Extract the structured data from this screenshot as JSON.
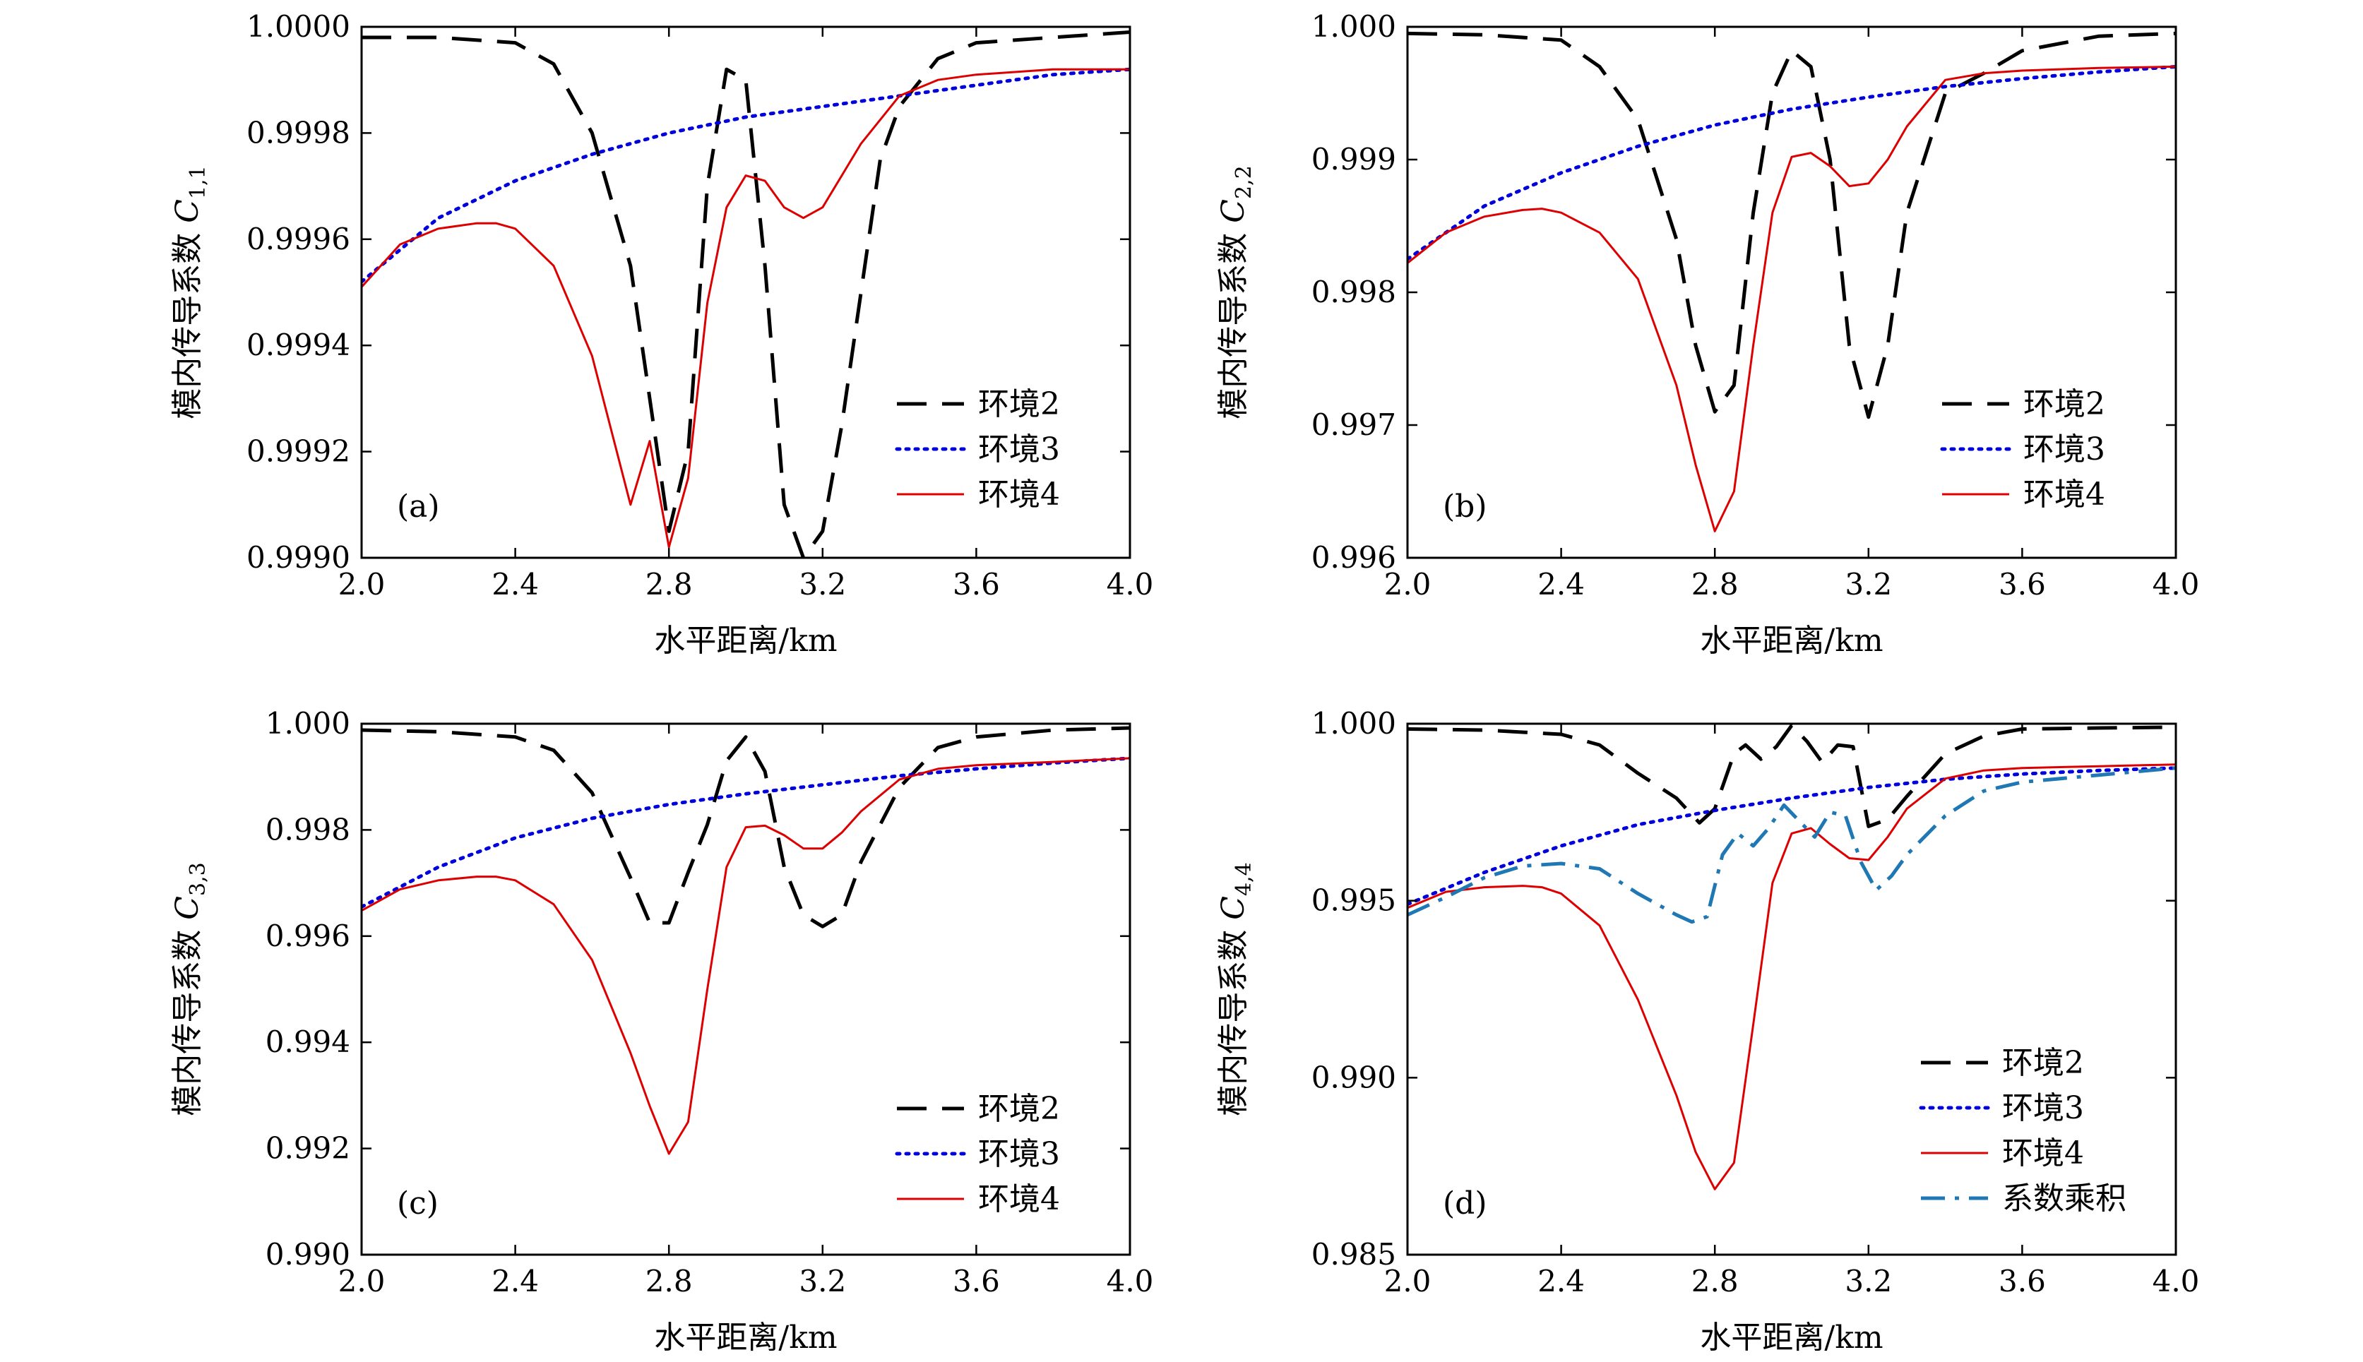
{
  "chart_data": [
    {
      "type": "line",
      "panel_label": "(a)",
      "xlabel": "水平距离/km",
      "ylabel_text": "模内传导系数 ",
      "ylabel_symbol": "C",
      "ylabel_sub": "1,1",
      "xlim": [
        2.0,
        4.0
      ],
      "ylim": [
        0.999,
        1.0
      ],
      "xticks": [
        2.0,
        2.4,
        2.8,
        3.2,
        3.6,
        4.0
      ],
      "xtick_labels": [
        "2.0",
        "2.4",
        "2.8",
        "3.2",
        "3.6",
        "4.0"
      ],
      "yticks": [
        0.999,
        0.9992,
        0.9994,
        0.9996,
        0.9998,
        1.0
      ],
      "ytick_labels": [
        "0.9990",
        "0.9992",
        "0.9994",
        "0.9996",
        "0.9998",
        "1.0000"
      ],
      "legend": [
        "环境2",
        "环境3",
        "环境4"
      ],
      "series": [
        {
          "name": "环境2",
          "style": "dashed",
          "color": "#000000",
          "x": [
            2.0,
            2.2,
            2.4,
            2.5,
            2.6,
            2.7,
            2.8,
            2.85,
            2.9,
            2.95,
            3.0,
            3.05,
            3.1,
            3.15,
            3.2,
            3.25,
            3.3,
            3.35,
            3.4,
            3.5,
            3.6,
            3.8,
            4.0
          ],
          "y": [
            0.99998,
            0.99998,
            0.99997,
            0.99993,
            0.9998,
            0.99955,
            0.99905,
            0.9992,
            0.9997,
            0.99992,
            0.9999,
            0.99955,
            0.9991,
            0.999,
            0.99905,
            0.99925,
            0.9995,
            0.99975,
            0.99985,
            0.99994,
            0.99997,
            0.99998,
            0.99999
          ]
        },
        {
          "name": "环境3",
          "style": "dotted",
          "color": "#0000dd",
          "x": [
            2.0,
            2.2,
            2.4,
            2.6,
            2.8,
            3.0,
            3.2,
            3.4,
            3.6,
            3.8,
            4.0
          ],
          "y": [
            0.99952,
            0.99964,
            0.99971,
            0.99976,
            0.9998,
            0.99983,
            0.99985,
            0.99987,
            0.99989,
            0.99991,
            0.99992
          ]
        },
        {
          "name": "环境4",
          "style": "solid",
          "color": "#dd0000",
          "x": [
            2.0,
            2.1,
            2.2,
            2.3,
            2.35,
            2.4,
            2.5,
            2.6,
            2.7,
            2.75,
            2.8,
            2.85,
            2.9,
            2.95,
            3.0,
            3.05,
            3.1,
            3.15,
            3.2,
            3.25,
            3.3,
            3.4,
            3.5,
            3.6,
            3.8,
            4.0
          ],
          "y": [
            0.99951,
            0.99959,
            0.99962,
            0.99963,
            0.99963,
            0.99962,
            0.99955,
            0.99938,
            0.9991,
            0.99922,
            0.99902,
            0.99915,
            0.99948,
            0.99966,
            0.99972,
            0.99971,
            0.99966,
            0.99964,
            0.99966,
            0.99972,
            0.99978,
            0.99987,
            0.9999,
            0.99991,
            0.99992,
            0.99992
          ]
        }
      ]
    },
    {
      "type": "line",
      "panel_label": "(b)",
      "xlabel": "水平距离/km",
      "ylabel_text": "模内传导系数 ",
      "ylabel_symbol": "C",
      "ylabel_sub": "2,2",
      "xlim": [
        2.0,
        4.0
      ],
      "ylim": [
        0.996,
        1.0
      ],
      "xticks": [
        2.0,
        2.4,
        2.8,
        3.2,
        3.6,
        4.0
      ],
      "xtick_labels": [
        "2.0",
        "2.4",
        "2.8",
        "3.2",
        "3.6",
        "4.0"
      ],
      "yticks": [
        0.996,
        0.997,
        0.998,
        0.999,
        1.0
      ],
      "ytick_labels": [
        "0.996",
        "0.997",
        "0.998",
        "0.999",
        "1.000"
      ],
      "legend": [
        "环境2",
        "环境3",
        "环境4"
      ],
      "series": [
        {
          "name": "环境2",
          "style": "dashed",
          "color": "#000000",
          "x": [
            2.0,
            2.2,
            2.4,
            2.5,
            2.6,
            2.7,
            2.75,
            2.8,
            2.85,
            2.9,
            2.95,
            3.0,
            3.05,
            3.1,
            3.15,
            3.2,
            3.25,
            3.3,
            3.4,
            3.5,
            3.6,
            3.8,
            4.0
          ],
          "y": [
            0.99995,
            0.99994,
            0.9999,
            0.9997,
            0.9993,
            0.9984,
            0.9976,
            0.9971,
            0.9973,
            0.9986,
            0.9995,
            0.99982,
            0.9997,
            0.999,
            0.9976,
            0.99706,
            0.9976,
            0.9986,
            0.9995,
            0.99965,
            0.99982,
            0.99993,
            0.99995
          ]
        },
        {
          "name": "环境3",
          "style": "dotted",
          "color": "#0000dd",
          "x": [
            2.0,
            2.2,
            2.4,
            2.6,
            2.8,
            3.0,
            3.2,
            3.4,
            3.6,
            3.8,
            4.0
          ],
          "y": [
            0.99825,
            0.99865,
            0.9989,
            0.9991,
            0.99926,
            0.99938,
            0.99947,
            0.99955,
            0.99961,
            0.99966,
            0.9997
          ]
        },
        {
          "name": "环境4",
          "style": "solid",
          "color": "#dd0000",
          "x": [
            2.0,
            2.1,
            2.2,
            2.3,
            2.35,
            2.4,
            2.5,
            2.6,
            2.7,
            2.75,
            2.8,
            2.85,
            2.9,
            2.95,
            3.0,
            3.05,
            3.1,
            3.15,
            3.2,
            3.25,
            3.3,
            3.4,
            3.5,
            3.6,
            3.8,
            4.0
          ],
          "y": [
            0.99822,
            0.99845,
            0.99857,
            0.99862,
            0.99863,
            0.9986,
            0.99845,
            0.9981,
            0.9973,
            0.9967,
            0.9962,
            0.9965,
            0.9976,
            0.9986,
            0.99902,
            0.99905,
            0.99895,
            0.9988,
            0.99882,
            0.999,
            0.99925,
            0.9996,
            0.99965,
            0.99967,
            0.99969,
            0.9997
          ]
        }
      ]
    },
    {
      "type": "line",
      "panel_label": "(c)",
      "xlabel": "水平距离/km",
      "ylabel_text": "模内传导系数 ",
      "ylabel_symbol": "C",
      "ylabel_sub": "3,3",
      "xlim": [
        2.0,
        4.0
      ],
      "ylim": [
        0.99,
        1.0
      ],
      "xticks": [
        2.0,
        2.4,
        2.8,
        3.2,
        3.6,
        4.0
      ],
      "xtick_labels": [
        "2.0",
        "2.4",
        "2.8",
        "3.2",
        "3.6",
        "4.0"
      ],
      "yticks": [
        0.99,
        0.992,
        0.994,
        0.996,
        0.998,
        1.0
      ],
      "ytick_labels": [
        "0.990",
        "0.992",
        "0.994",
        "0.996",
        "0.998",
        "1.000"
      ],
      "legend": [
        "环境2",
        "环境3",
        "环境4"
      ],
      "series": [
        {
          "name": "环境2",
          "style": "dashed",
          "color": "#000000",
          "x": [
            2.0,
            2.2,
            2.4,
            2.5,
            2.6,
            2.7,
            2.75,
            2.8,
            2.85,
            2.9,
            2.95,
            3.0,
            3.05,
            3.1,
            3.15,
            3.2,
            3.25,
            3.3,
            3.4,
            3.5,
            3.6,
            3.8,
            4.0
          ],
          "y": [
            0.99988,
            0.99985,
            0.99975,
            0.9995,
            0.9987,
            0.9971,
            0.99625,
            0.99625,
            0.9972,
            0.9981,
            0.9993,
            0.99975,
            0.9991,
            0.9973,
            0.9964,
            0.99618,
            0.9964,
            0.9974,
            0.9988,
            0.99955,
            0.99975,
            0.99988,
            0.99992
          ]
        },
        {
          "name": "环境3",
          "style": "dotted",
          "color": "#0000dd",
          "x": [
            2.0,
            2.2,
            2.4,
            2.6,
            2.8,
            3.0,
            3.2,
            3.4,
            3.6,
            3.8,
            4.0
          ],
          "y": [
            0.99655,
            0.9973,
            0.99785,
            0.99822,
            0.99848,
            0.99868,
            0.99885,
            0.99902,
            0.99915,
            0.99926,
            0.99935
          ]
        },
        {
          "name": "环境4",
          "style": "solid",
          "color": "#dd0000",
          "x": [
            2.0,
            2.1,
            2.2,
            2.3,
            2.35,
            2.4,
            2.5,
            2.6,
            2.7,
            2.75,
            2.8,
            2.85,
            2.9,
            2.95,
            3.0,
            3.05,
            3.1,
            3.15,
            3.2,
            3.25,
            3.3,
            3.4,
            3.5,
            3.6,
            3.8,
            4.0
          ],
          "y": [
            0.99648,
            0.99688,
            0.99705,
            0.99712,
            0.99712,
            0.99705,
            0.9966,
            0.99555,
            0.9938,
            0.9928,
            0.9919,
            0.9925,
            0.995,
            0.9973,
            0.99805,
            0.99808,
            0.9979,
            0.99765,
            0.99765,
            0.99795,
            0.99835,
            0.99895,
            0.99915,
            0.99922,
            0.99928,
            0.99935
          ]
        }
      ]
    },
    {
      "type": "line",
      "panel_label": "(d)",
      "xlabel": "水平距离/km",
      "ylabel_text": "模内传导系数 ",
      "ylabel_symbol": "C",
      "ylabel_sub": "4,4",
      "xlim": [
        2.0,
        4.0
      ],
      "ylim": [
        0.985,
        1.0
      ],
      "xticks": [
        2.0,
        2.4,
        2.8,
        3.2,
        3.6,
        4.0
      ],
      "xtick_labels": [
        "2.0",
        "2.4",
        "2.8",
        "3.2",
        "3.6",
        "4.0"
      ],
      "yticks": [
        0.985,
        0.99,
        0.995,
        1.0
      ],
      "ytick_labels": [
        "0.985",
        "0.990",
        "0.995",
        "1.000"
      ],
      "legend": [
        "环境2",
        "环境3",
        "环境4",
        "系数乘积"
      ],
      "series": [
        {
          "name": "环境2",
          "style": "dashed",
          "color": "#000000",
          "x": [
            2.0,
            2.2,
            2.4,
            2.5,
            2.6,
            2.7,
            2.76,
            2.8,
            2.85,
            2.88,
            2.92,
            2.96,
            3.0,
            3.04,
            3.08,
            3.12,
            3.16,
            3.2,
            3.25,
            3.3,
            3.4,
            3.5,
            3.6,
            3.8,
            4.0
          ],
          "y": [
            0.99985,
            0.99982,
            0.9997,
            0.9994,
            0.9986,
            0.9979,
            0.9972,
            0.9976,
            0.99915,
            0.9994,
            0.999,
            0.99935,
            0.99995,
            0.9995,
            0.9989,
            0.9994,
            0.99935,
            0.9971,
            0.9973,
            0.99795,
            0.99915,
            0.99965,
            0.99985,
            0.99988,
            0.9999
          ]
        },
        {
          "name": "环境3",
          "style": "dotted",
          "color": "#0000dd",
          "x": [
            2.0,
            2.2,
            2.4,
            2.6,
            2.8,
            3.0,
            3.2,
            3.4,
            3.6,
            3.8,
            4.0
          ],
          "y": [
            0.9949,
            0.9958,
            0.99655,
            0.99715,
            0.99755,
            0.9979,
            0.9982,
            0.99843,
            0.99858,
            0.99868,
            0.99875
          ]
        },
        {
          "name": "环境4",
          "style": "solid",
          "color": "#dd0000",
          "x": [
            2.0,
            2.1,
            2.2,
            2.3,
            2.35,
            2.4,
            2.5,
            2.6,
            2.7,
            2.75,
            2.8,
            2.85,
            2.9,
            2.95,
            3.0,
            3.05,
            3.1,
            3.15,
            3.2,
            3.25,
            3.3,
            3.4,
            3.5,
            3.6,
            3.8,
            4.0
          ],
          "y": [
            0.9948,
            0.99525,
            0.99538,
            0.99542,
            0.99538,
            0.9952,
            0.9943,
            0.9922,
            0.9895,
            0.9879,
            0.98685,
            0.9876,
            0.9915,
            0.9955,
            0.9969,
            0.99705,
            0.9966,
            0.9962,
            0.99615,
            0.9968,
            0.9976,
            0.99845,
            0.99868,
            0.99875,
            0.9988,
            0.99885
          ]
        },
        {
          "name": "系数乘积",
          "style": "dashdot",
          "color": "#1f77b4",
          "x": [
            2.0,
            2.1,
            2.2,
            2.3,
            2.4,
            2.5,
            2.6,
            2.7,
            2.74,
            2.78,
            2.82,
            2.86,
            2.9,
            2.94,
            2.98,
            3.02,
            3.06,
            3.1,
            3.14,
            3.18,
            3.22,
            3.26,
            3.3,
            3.4,
            3.5,
            3.6,
            3.8,
            4.0
          ],
          "y": [
            0.9946,
            0.9951,
            0.99565,
            0.99598,
            0.99605,
            0.9959,
            0.9952,
            0.9946,
            0.9944,
            0.99455,
            0.9963,
            0.9969,
            0.99655,
            0.99705,
            0.9977,
            0.99725,
            0.9968,
            0.9975,
            0.9974,
            0.9961,
            0.9953,
            0.9957,
            0.9963,
            0.9974,
            0.9981,
            0.99835,
            0.99855,
            0.99875
          ]
        }
      ]
    }
  ]
}
